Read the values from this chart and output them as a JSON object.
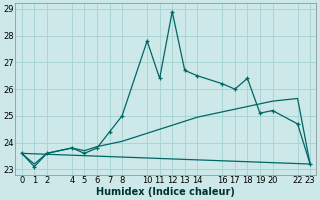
{
  "xlabel": "Humidex (Indice chaleur)",
  "bg_color": "#cce8e8",
  "grid_color": "#aad4d4",
  "line_color": "#006666",
  "x_ticks": [
    0,
    1,
    2,
    4,
    5,
    6,
    7,
    8,
    10,
    11,
    12,
    13,
    14,
    16,
    17,
    18,
    19,
    20,
    22,
    23
  ],
  "ylim_min": 22.8,
  "ylim_max": 29.2,
  "xlim_min": -0.5,
  "xlim_max": 23.5,
  "yticks": [
    23,
    24,
    25,
    26,
    27,
    28,
    29
  ],
  "series1_x": [
    0,
    1,
    2,
    4,
    5,
    6,
    7,
    8,
    10,
    11,
    12,
    13,
    14,
    16,
    17,
    18,
    19,
    20,
    22,
    23
  ],
  "series1_y": [
    23.6,
    23.1,
    23.6,
    23.8,
    23.6,
    23.8,
    24.4,
    25.0,
    27.8,
    26.4,
    28.9,
    26.7,
    26.5,
    26.2,
    26.0,
    26.4,
    25.1,
    25.2,
    24.7,
    23.2
  ],
  "series2_x": [
    0,
    1,
    2,
    4,
    5,
    6,
    7,
    8,
    10,
    11,
    12,
    13,
    14,
    16,
    17,
    18,
    19,
    20,
    22,
    23
  ],
  "series2_y": [
    23.6,
    23.2,
    23.6,
    23.8,
    23.7,
    23.85,
    23.95,
    24.05,
    24.35,
    24.5,
    24.65,
    24.8,
    24.95,
    25.15,
    25.25,
    25.35,
    25.45,
    25.55,
    25.65,
    23.2
  ],
  "series3_x": [
    0,
    23
  ],
  "series3_y": [
    23.6,
    23.2
  ],
  "xlabel_fontsize": 7,
  "tick_fontsize": 6
}
